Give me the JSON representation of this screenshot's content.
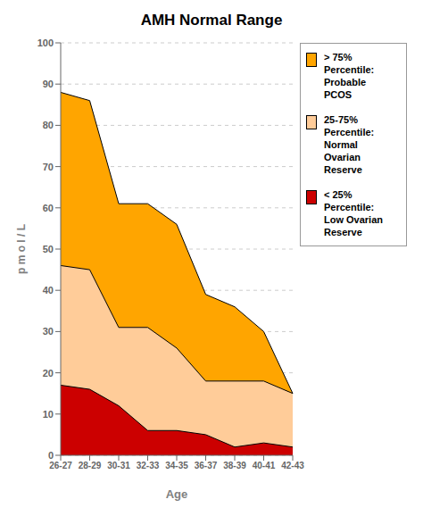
{
  "chart_data": {
    "type": "area",
    "title": "AMH Normal Range",
    "x_label": "Age",
    "y_label": "p m o l / L",
    "categories": [
      "26-27",
      "28-29",
      "30-31",
      "32-33",
      "34-35",
      "36-37",
      "38-39",
      "40-41",
      "42-43"
    ],
    "series": [
      {
        "name": "> 75%\nPercentile:\nProbable\nPCOS",
        "color": "#FFA500",
        "values": [
          88,
          86,
          61,
          61,
          56,
          39,
          36,
          30,
          15
        ]
      },
      {
        "name": "25-75%\nPercentile:\nNormal\nOvarian\nReserve",
        "color": "#FFCC99",
        "values": [
          46,
          45,
          31,
          31,
          26,
          18,
          18,
          18,
          15
        ]
      },
      {
        "name": "< 25%\nPercentile:\nLow Ovarian\nReserve",
        "color": "#CC0000",
        "values": [
          17,
          16,
          12,
          6,
          6,
          5,
          2,
          3,
          2
        ]
      }
    ],
    "ylim": [
      0,
      100
    ],
    "yticks": [
      0,
      10,
      20,
      30,
      40,
      50,
      60,
      70,
      80,
      90,
      100
    ],
    "grid": true,
    "legend": "right"
  }
}
